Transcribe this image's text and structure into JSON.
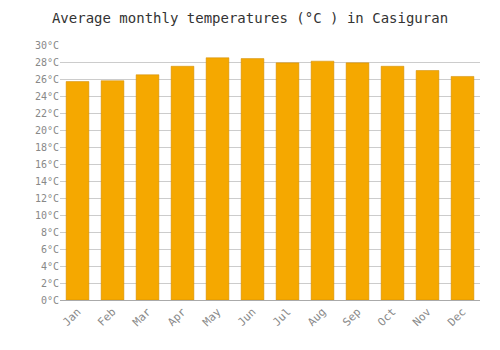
{
  "chart_data": {
    "type": "bar",
    "title": "Average monthly temperatures (°C ) in Casiguran",
    "categories": [
      "Jan",
      "Feb",
      "Mar",
      "Apr",
      "May",
      "Jun",
      "Jul",
      "Aug",
      "Sep",
      "Oct",
      "Nov",
      "Dec"
    ],
    "values": [
      25.7,
      25.8,
      26.5,
      27.5,
      28.5,
      28.4,
      27.9,
      28.1,
      27.9,
      27.5,
      27.0,
      26.3
    ],
    "color": "#F5A800",
    "ylim": [
      0,
      30
    ],
    "yticks": [
      {
        "value": 0,
        "label": "0°C"
      },
      {
        "value": 2,
        "label": "2°C"
      },
      {
        "value": 4,
        "label": "4°C"
      },
      {
        "value": 6,
        "label": "6°C"
      },
      {
        "value": 8,
        "label": "8°C"
      },
      {
        "value": 10,
        "label": "10°C"
      },
      {
        "value": 12,
        "label": "12°C"
      },
      {
        "value": 14,
        "label": "14°C"
      },
      {
        "value": 16,
        "label": "16°C"
      },
      {
        "value": 18,
        "label": "18°C"
      },
      {
        "value": 20,
        "label": "20°C"
      },
      {
        "value": 22,
        "label": "22°C"
      },
      {
        "value": 24,
        "label": "24°C"
      },
      {
        "value": 26,
        "label": "26°C"
      },
      {
        "value": 28,
        "label": "28°C"
      },
      {
        "value": 30,
        "label": "30°C"
      }
    ],
    "grid": true
  }
}
